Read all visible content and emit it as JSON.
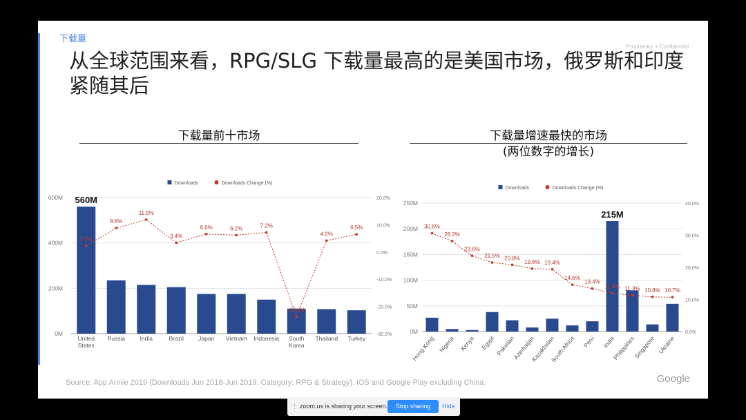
{
  "slide": {
    "section_label": "下载量",
    "confidential": "Proprietary + Confidential",
    "title": "从全球范围来看，RPG/SLG 下载量最高的是美国市场，俄罗斯和印度紧随其后",
    "source": "Source:  App Annie 2019 (Downloads Jun 2018-Jun 2019, Category: RPG & Strategy). iOS and Google Play excluding China.",
    "logo": "Google"
  },
  "zoom_bar": {
    "message": "zoom.us is sharing your screen.",
    "stop_label": "Stop sharing",
    "hide_label": "Hide"
  },
  "colors": {
    "bar": "#2a4a8f",
    "line": "#c0392b",
    "accent": "#4a86e8"
  },
  "chart_data": [
    {
      "type": "bar",
      "title": "下载量前十市场",
      "subtitle": "",
      "categories": [
        "United States",
        "Russia",
        "India",
        "Brazil",
        "Japan",
        "Vietnam",
        "Indonesia",
        "South Korea",
        "Thailand",
        "Turkey"
      ],
      "category_labels": [
        [
          "United",
          "States"
        ],
        [
          "Russia"
        ],
        [
          "India"
        ],
        [
          "Brazil"
        ],
        [
          "Japan"
        ],
        [
          "Vietnam"
        ],
        [
          "Indonesia"
        ],
        [
          "South",
          "Korea"
        ],
        [
          "Thailand"
        ],
        [
          "Turkey"
        ]
      ],
      "series": [
        {
          "name": "Downloads",
          "axis": "left",
          "kind": "bar",
          "values": [
            560,
            235,
            215,
            205,
            175,
            175,
            150,
            110,
            108,
            103
          ]
        },
        {
          "name": "Downloads Change (%)",
          "axis": "right",
          "kind": "line",
          "values": [
            2.3,
            8.8,
            11.9,
            3.4,
            6.6,
            6.2,
            7.2,
            -23.8,
            4.2,
            6.5
          ],
          "labels": [
            "2.3%",
            "8.8%",
            "11.9%",
            "3.4%",
            "6.6%",
            "6.2%",
            "7.2%",
            "-23.8%",
            "4.2%",
            "6.5%"
          ]
        }
      ],
      "ylim_left": [
        0,
        600
      ],
      "yticks_left": [
        "0M",
        "200M",
        "400M",
        "600M"
      ],
      "ylim_right": [
        -30,
        20
      ],
      "yticks_right": [
        "-30.0%",
        "-20.0%",
        "-10.0%",
        "0.0%",
        "10.0%",
        "20.0%"
      ],
      "highlight": {
        "index": 0,
        "label": "560M"
      },
      "legend": "top-center",
      "grid": true
    },
    {
      "type": "bar",
      "title": "下载量增速最快的市场",
      "subtitle": "(两位数字的增长)",
      "categories": [
        "Hong Kong",
        "Nigeria",
        "Kenya",
        "Egypt",
        "Pakistan",
        "Azerbaijan",
        "Kazakhstan",
        "South Africa",
        "Peru",
        "India",
        "Philippines",
        "Singapore",
        "Ukraine"
      ],
      "series": [
        {
          "name": "Downloads",
          "axis": "left",
          "kind": "bar",
          "values": [
            27,
            5,
            3,
            38,
            22,
            8,
            25,
            12,
            20,
            215,
            80,
            14,
            54
          ]
        },
        {
          "name": "Downloads Change (%)",
          "axis": "right",
          "kind": "line",
          "values": [
            30.6,
            28.2,
            23.6,
            21.5,
            20.8,
            19.6,
            19.4,
            14.6,
            13.4,
            11.9,
            11.3,
            10.8,
            10.7
          ],
          "labels": [
            "30.6%",
            "28.2%",
            "23.6%",
            "21.5%",
            "20.8%",
            "19.6%",
            "19.4%",
            "14.6%",
            "13.4%",
            "11.9%",
            "11.3%",
            "10.8%",
            "10.7%"
          ]
        }
      ],
      "ylim_left": [
        0,
        250
      ],
      "yticks_left": [
        "0M",
        "50M",
        "100M",
        "150M",
        "200M",
        "250M"
      ],
      "ylim_right": [
        0,
        40
      ],
      "yticks_right": [
        "0.0%",
        "10.0%",
        "20.0%",
        "30.0%",
        "40.0%"
      ],
      "highlight": {
        "index": 9,
        "label": "215M"
      },
      "legend": "top-center",
      "grid": true
    }
  ]
}
